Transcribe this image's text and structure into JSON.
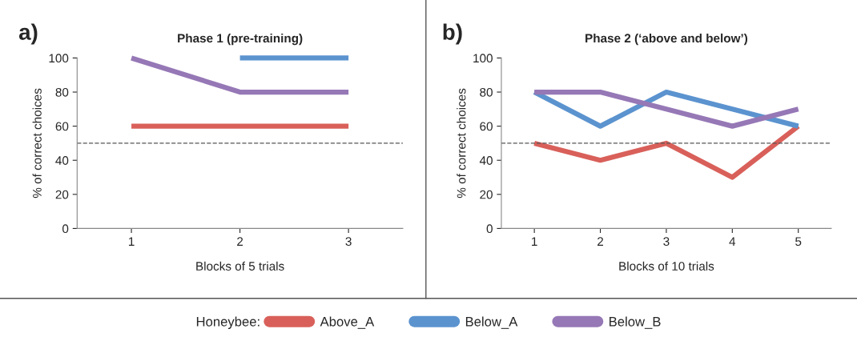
{
  "chart_data": [
    {
      "type": "line",
      "title": "Phase 1 (pre-training)",
      "xlabel": "Blocks of 5 trials",
      "ylabel": "% of correct choices",
      "annotations": [
        "a)"
      ],
      "categories": [
        "1",
        "2",
        "3"
      ],
      "series": [
        {
          "name": "Above_A",
          "color": "#d9605a",
          "values": [
            60,
            60,
            60
          ]
        },
        {
          "name": "Below_A",
          "color": "#5b93cf",
          "values": [
            null,
            100,
            100
          ]
        },
        {
          "name": "Below_B",
          "color": "#9678b6",
          "values": [
            100,
            80,
            80
          ]
        }
      ],
      "ylim": [
        0,
        100
      ],
      "yticks": [
        0,
        20,
        40,
        60,
        80,
        100
      ],
      "ref_lines": [
        {
          "axis": "y",
          "value": 50,
          "color": "#555555",
          "line_style": "dashed"
        }
      ],
      "legend": "bottom",
      "legend_title": "Honeybee:",
      "marker": "none",
      "line_style": "solid"
    },
    {
      "type": "line",
      "title": "Phase 2 (‘above and below’)",
      "xlabel": "Blocks of 10 trials",
      "ylabel": "% of correct choices",
      "annotations": [
        "b)"
      ],
      "categories": [
        "1",
        "2",
        "3",
        "4",
        "5"
      ],
      "series": [
        {
          "name": "Above_A",
          "color": "#d9605a",
          "values": [
            50,
            40,
            50,
            30,
            60
          ]
        },
        {
          "name": "Below_A",
          "color": "#5b93cf",
          "values": [
            80,
            60,
            80,
            70,
            60
          ]
        },
        {
          "name": "Below_B",
          "color": "#9678b6",
          "values": [
            80,
            80,
            70,
            60,
            70
          ]
        }
      ],
      "ylim": [
        0,
        100
      ],
      "yticks": [
        0,
        20,
        40,
        60,
        80,
        100
      ],
      "ref_lines": [
        {
          "axis": "y",
          "value": 50,
          "color": "#555555",
          "line_style": "dashed"
        }
      ],
      "marker": "none",
      "line_style": "solid"
    }
  ]
}
